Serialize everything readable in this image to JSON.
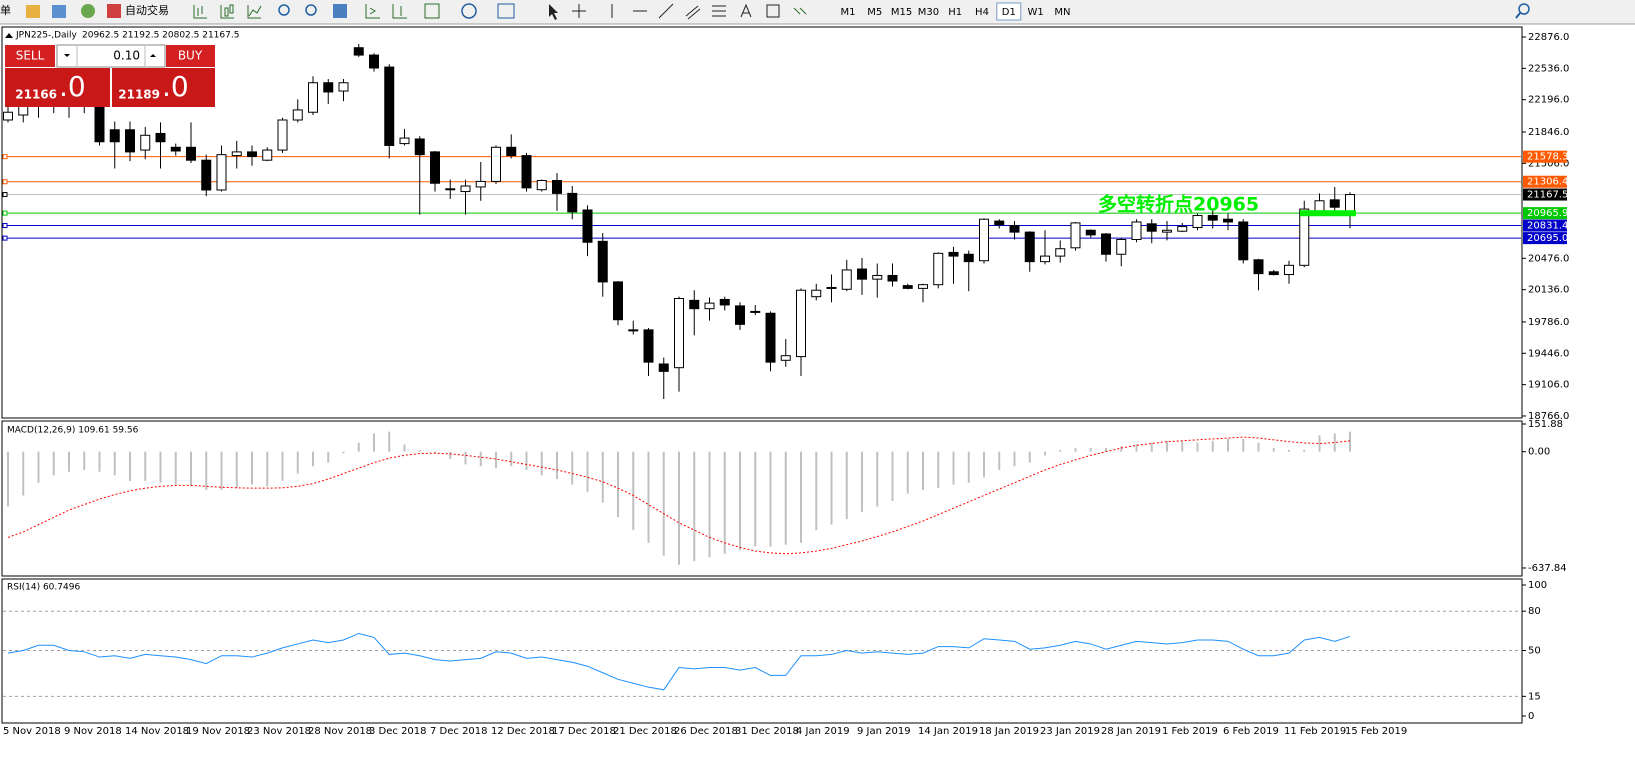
{
  "toolbar": {
    "left_text": "单",
    "auto_trade": "自动交易",
    "timeframes": [
      {
        "label": "M1"
      },
      {
        "label": "M5"
      },
      {
        "label": "M15"
      },
      {
        "label": "M30"
      },
      {
        "label": "H1"
      },
      {
        "label": "H4"
      },
      {
        "label": "D1",
        "active": true
      },
      {
        "label": "W1"
      },
      {
        "label": "MN"
      }
    ]
  },
  "trade_panel": {
    "sell": "SELL",
    "lot": "0.10",
    "buy": "BUY",
    "bid_main": "21166",
    "bid_frac": ".0",
    "ask_main": "21189",
    "ask_frac": ".0"
  },
  "chart_data": [
    {
      "type": "candlestick",
      "title": "JPN225-,Daily",
      "subtitle": "20962.5 21192.5 20802.5 21167.5",
      "categories": [
        "5 Nov 2018",
        null,
        null,
        null,
        "9 Nov 2018",
        null,
        null,
        null,
        "14 Nov 2018",
        null,
        null,
        null,
        "19 Nov 2018",
        null,
        null,
        null,
        "23 Nov 2018",
        null,
        null,
        null,
        "28 Nov 2018",
        null,
        null,
        null,
        "3 Dec 2018",
        null,
        null,
        null,
        "7 Dec 2018",
        null,
        null,
        null,
        "12 Dec 2018",
        null,
        null,
        null,
        "17 Dec 2018",
        null,
        null,
        null,
        "21 Dec 2018",
        null,
        null,
        null,
        "26 Dec 2018",
        null,
        null,
        null,
        "31 Dec 2018",
        null,
        null,
        null,
        "4 Jan 2019",
        null,
        null,
        null,
        "9 Jan 2019",
        null,
        null,
        null,
        "14 Jan 2019",
        null,
        null,
        null,
        "18 Jan 2019",
        null,
        null,
        null,
        "23 Jan 2019",
        null,
        null,
        null,
        "28 Jan 2019",
        null,
        null,
        null,
        "1 Feb 2019",
        null,
        null,
        null,
        "6 Feb 2019",
        null,
        null,
        null,
        "11 Feb 2019",
        null,
        null,
        null,
        "15 Feb 2019"
      ],
      "open": [
        21976,
        22030,
        22140,
        22190,
        22150,
        22250,
        22120,
        21870,
        21870,
        21650,
        21830,
        21680,
        21680,
        21540,
        21217,
        21590,
        21630,
        21540,
        21650,
        21976,
        22060,
        22380,
        22290,
        22760,
        22680,
        22550,
        21720,
        21770,
        21630,
        21230,
        21200,
        21250,
        21310,
        21680,
        21590,
        21220,
        21320,
        21180,
        21000,
        20660,
        20220,
        19700,
        19700,
        19330,
        19290,
        20020,
        19930,
        20030,
        19960,
        19900,
        19880,
        19370,
        19410,
        20060,
        20150,
        20140,
        20360,
        20250,
        20290,
        20180,
        20150,
        20190,
        20540,
        20520,
        20450,
        20880,
        20830,
        20760,
        20440,
        20500,
        20590,
        20780,
        20740,
        20520,
        20680,
        20850,
        20760,
        20770,
        20810,
        20940,
        20900,
        20870,
        20460,
        20330,
        20300,
        20400,
        20990,
        21110,
        20962.5
      ],
      "high": [
        22200,
        22250,
        22300,
        22350,
        22400,
        22350,
        22200,
        21960,
        21960,
        21900,
        21950,
        21720,
        21950,
        21600,
        21700,
        21750,
        21700,
        21680,
        22000,
        22200,
        22450,
        22420,
        22420,
        22800,
        22700,
        22580,
        21880,
        21800,
        21640,
        21330,
        21330,
        21520,
        21700,
        21820,
        21620,
        21330,
        21400,
        21260,
        21050,
        20750,
        20230,
        19800,
        19720,
        19400,
        20060,
        20130,
        20050,
        20060,
        20000,
        19970,
        19900,
        19600,
        20150,
        20200,
        20300,
        20460,
        20480,
        20420,
        20420,
        20200,
        20200,
        20540,
        20600,
        20560,
        20910,
        20900,
        20880,
        20770,
        20780,
        20670,
        20870,
        20790,
        20750,
        20700,
        20900,
        20900,
        20880,
        20860,
        20960,
        21000,
        20960,
        20900,
        20470,
        20350,
        20450,
        21100,
        21180,
        21250,
        21192.5
      ],
      "low": [
        21950,
        21950,
        22000,
        22050,
        22000,
        22050,
        21700,
        21450,
        21530,
        21550,
        21450,
        21590,
        21510,
        21150,
        21200,
        21450,
        21480,
        21530,
        21620,
        21950,
        22030,
        22150,
        22180,
        22660,
        22500,
        21560,
        21700,
        20950,
        21200,
        21120,
        20950,
        21100,
        21280,
        21560,
        21200,
        21200,
        20990,
        20900,
        20500,
        20060,
        19750,
        19650,
        19200,
        18950,
        19030,
        19640,
        19800,
        19910,
        19700,
        19860,
        19250,
        19300,
        19200,
        20020,
        20000,
        20120,
        20080,
        20050,
        20170,
        20140,
        20000,
        20150,
        20200,
        20120,
        20420,
        20800,
        20680,
        20330,
        20410,
        20430,
        20560,
        20700,
        20440,
        20390,
        20650,
        20640,
        20670,
        20760,
        20780,
        20800,
        20780,
        20420,
        20130,
        20290,
        20200,
        20380,
        20960,
        20980,
        20802.5
      ],
      "close": [
        22060,
        22140,
        22190,
        22150,
        22250,
        22200,
        21740,
        21740,
        21630,
        21810,
        21740,
        21640,
        21540,
        21217,
        21600,
        21630,
        21580,
        21650,
        21976,
        22085,
        22380,
        22280,
        22380,
        22680,
        22540,
        21700,
        21780,
        21600,
        21290,
        21220,
        21260,
        21310,
        21680,
        21590,
        21240,
        21320,
        21180,
        20980,
        20650,
        20220,
        19810,
        19690,
        19350,
        19250,
        20040,
        19930,
        19990,
        19970,
        19760,
        19890,
        19350,
        19420,
        20130,
        20130,
        20160,
        20350,
        20250,
        20290,
        20230,
        20150,
        20190,
        20530,
        20500,
        20440,
        20900,
        20840,
        20760,
        20440,
        20500,
        20580,
        20860,
        20730,
        20520,
        20680,
        20870,
        20770,
        20780,
        20820,
        20940,
        20890,
        20870,
        20460,
        20310,
        20300,
        20400,
        21010,
        21100,
        21030,
        21167.5
      ],
      "up_color": "#ffffff",
      "down_color": "#000000",
      "ylim": [
        18766,
        22876
      ],
      "yticks": [
        {
          "value": 22876,
          "label": "22876.0"
        },
        {
          "value": 22536,
          "label": "22536.0"
        },
        {
          "value": 22196,
          "label": "22196.0"
        },
        {
          "value": 21846,
          "label": "21846.0"
        },
        {
          "value": 21506,
          "label": "21506.0"
        },
        {
          "value": 20476,
          "label": "20476.0"
        },
        {
          "value": 20136,
          "label": "20136.0"
        },
        {
          "value": 19786,
          "label": "19786.0"
        },
        {
          "value": 19446,
          "label": "19446.0"
        },
        {
          "value": 19106,
          "label": "19106.0"
        },
        {
          "value": 18766,
          "label": "18766.0"
        }
      ],
      "hlines": [
        {
          "value": 21578.3,
          "color": "#ff5a00"
        },
        {
          "value": 21306.4,
          "color": "#ff5a00"
        },
        {
          "value": 21167.5,
          "color": "#000000",
          "line_color": "#c0c0c0"
        },
        {
          "value": 20965.9,
          "color": "#00c800"
        },
        {
          "value": 20831.4,
          "color": "#0000c8"
        },
        {
          "value": 20695,
          "label": "20695.0",
          "color": "#0000c8"
        }
      ],
      "annotation": {
        "text": "多空转折点20965",
        "value": 20965,
        "color": "#00ee00"
      }
    },
    {
      "type": "macd",
      "title": "MACD(12,26,9) 109.61 59.56",
      "series": [
        {
          "color": "#c0c0c0",
          "values": [
            -300,
            -240,
            -170,
            -130,
            -110,
            -100,
            -110,
            -130,
            -160,
            -160,
            -170,
            -180,
            -190,
            -210,
            -210,
            -200,
            -180,
            -190,
            -160,
            -120,
            -80,
            -60,
            -10,
            50,
            100,
            110,
            40,
            10,
            -10,
            -40,
            -70,
            -80,
            -90,
            -80,
            -100,
            -130,
            -150,
            -180,
            -220,
            -280,
            -360,
            -430,
            -500,
            -570,
            -620,
            -600,
            -580,
            -560,
            -540,
            -520,
            -520,
            -510,
            -500,
            -430,
            -400,
            -370,
            -330,
            -300,
            -270,
            -230,
            -210,
            -200,
            -180,
            -170,
            -140,
            -100,
            -80,
            -60,
            -20,
            10,
            20,
            20,
            20,
            30,
            40,
            50,
            60,
            60,
            50,
            60,
            70,
            70,
            50,
            20,
            10,
            10,
            90,
            100,
            109.61
          ]
        },
        {
          "color": "#ff0000",
          "style": "dotted",
          "values": [
            -470,
            -440,
            -400,
            -360,
            -320,
            -290,
            -260,
            -235,
            -215,
            -200,
            -190,
            -185,
            -185,
            -190,
            -195,
            -198,
            -200,
            -200,
            -198,
            -190,
            -175,
            -150,
            -120,
            -90,
            -60,
            -35,
            -20,
            -10,
            -8,
            -12,
            -20,
            -30,
            -40,
            -55,
            -70,
            -85,
            -100,
            -120,
            -140,
            -165,
            -200,
            -240,
            -290,
            -340,
            -390,
            -430,
            -470,
            -500,
            -525,
            -545,
            -555,
            -560,
            -555,
            -545,
            -530,
            -510,
            -490,
            -465,
            -440,
            -410,
            -380,
            -345,
            -310,
            -275,
            -240,
            -205,
            -170,
            -135,
            -100,
            -70,
            -45,
            -20,
            0,
            20,
            35,
            45,
            55,
            60,
            65,
            70,
            75,
            80,
            75,
            65,
            55,
            48,
            45,
            50,
            59.56
          ]
        }
      ],
      "ylim": [
        -637.84,
        151.88
      ],
      "yticks": [
        151.88,
        {
          "value": 0,
          "label": "0.00"
        },
        -637.84
      ]
    },
    {
      "type": "line",
      "title": "RSI(14) 60.7496",
      "series": [
        {
          "color": "#1e90ff",
          "values": [
            48,
            50,
            54,
            54,
            50,
            49,
            45,
            46,
            44,
            47,
            46,
            45,
            43,
            40,
            46,
            46,
            45,
            48,
            52,
            55,
            58,
            56,
            58,
            63,
            60,
            47,
            48,
            46,
            43,
            42,
            43,
            44,
            49,
            48,
            44,
            45,
            43,
            41,
            38,
            33,
            28,
            25,
            22,
            20,
            37,
            36,
            37,
            37,
            35,
            37,
            31,
            31,
            46,
            46,
            47,
            50,
            48,
            49,
            48,
            47,
            48,
            53,
            53,
            52,
            59,
            58,
            57,
            51,
            52,
            54,
            57,
            55,
            51,
            54,
            57,
            56,
            55,
            56,
            58,
            58,
            57,
            51,
            46,
            46,
            48,
            58,
            60,
            57,
            60.7496
          ]
        }
      ],
      "ylim": [
        0,
        100
      ],
      "yticks": [
        100,
        80,
        50,
        15,
        0
      ],
      "grid": "dashed"
    }
  ]
}
